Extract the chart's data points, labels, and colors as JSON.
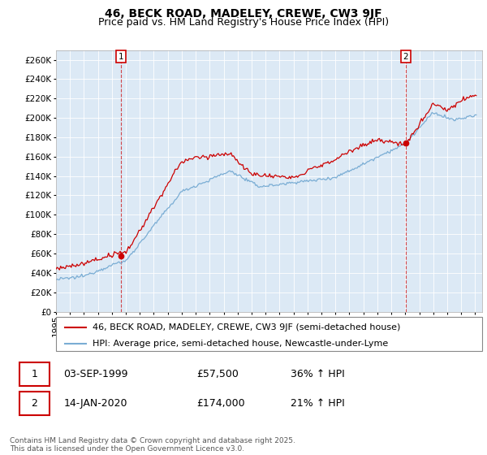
{
  "title": "46, BECK ROAD, MADELEY, CREWE, CW3 9JF",
  "subtitle": "Price paid vs. HM Land Registry's House Price Index (HPI)",
  "ylim": [
    0,
    270000
  ],
  "yticks": [
    0,
    20000,
    40000,
    60000,
    80000,
    100000,
    120000,
    140000,
    160000,
    180000,
    200000,
    220000,
    240000,
    260000
  ],
  "xlim_start": 1995.3,
  "xlim_end": 2025.5,
  "property_color": "#cc0000",
  "hpi_color": "#7aadd4",
  "chart_bg": "#dce9f5",
  "marker1_x": 1999.67,
  "marker1_y": 57500,
  "marker2_x": 2020.04,
  "marker2_y": 174000,
  "marker1_label": "1",
  "marker2_label": "2",
  "legend_property": "46, BECK ROAD, MADELEY, CREWE, CW3 9JF (semi-detached house)",
  "legend_hpi": "HPI: Average price, semi-detached house, Newcastle-under-Lyme",
  "table_row1": [
    "1",
    "03-SEP-1999",
    "£57,500",
    "36% ↑ HPI"
  ],
  "table_row2": [
    "2",
    "14-JAN-2020",
    "£174,000",
    "21% ↑ HPI"
  ],
  "footer": "Contains HM Land Registry data © Crown copyright and database right 2025.\nThis data is licensed under the Open Government Licence v3.0.",
  "background_color": "#ffffff",
  "grid_color": "#ffffff",
  "title_fontsize": 10,
  "subtitle_fontsize": 9,
  "tick_fontsize": 7.5,
  "legend_fontsize": 8
}
